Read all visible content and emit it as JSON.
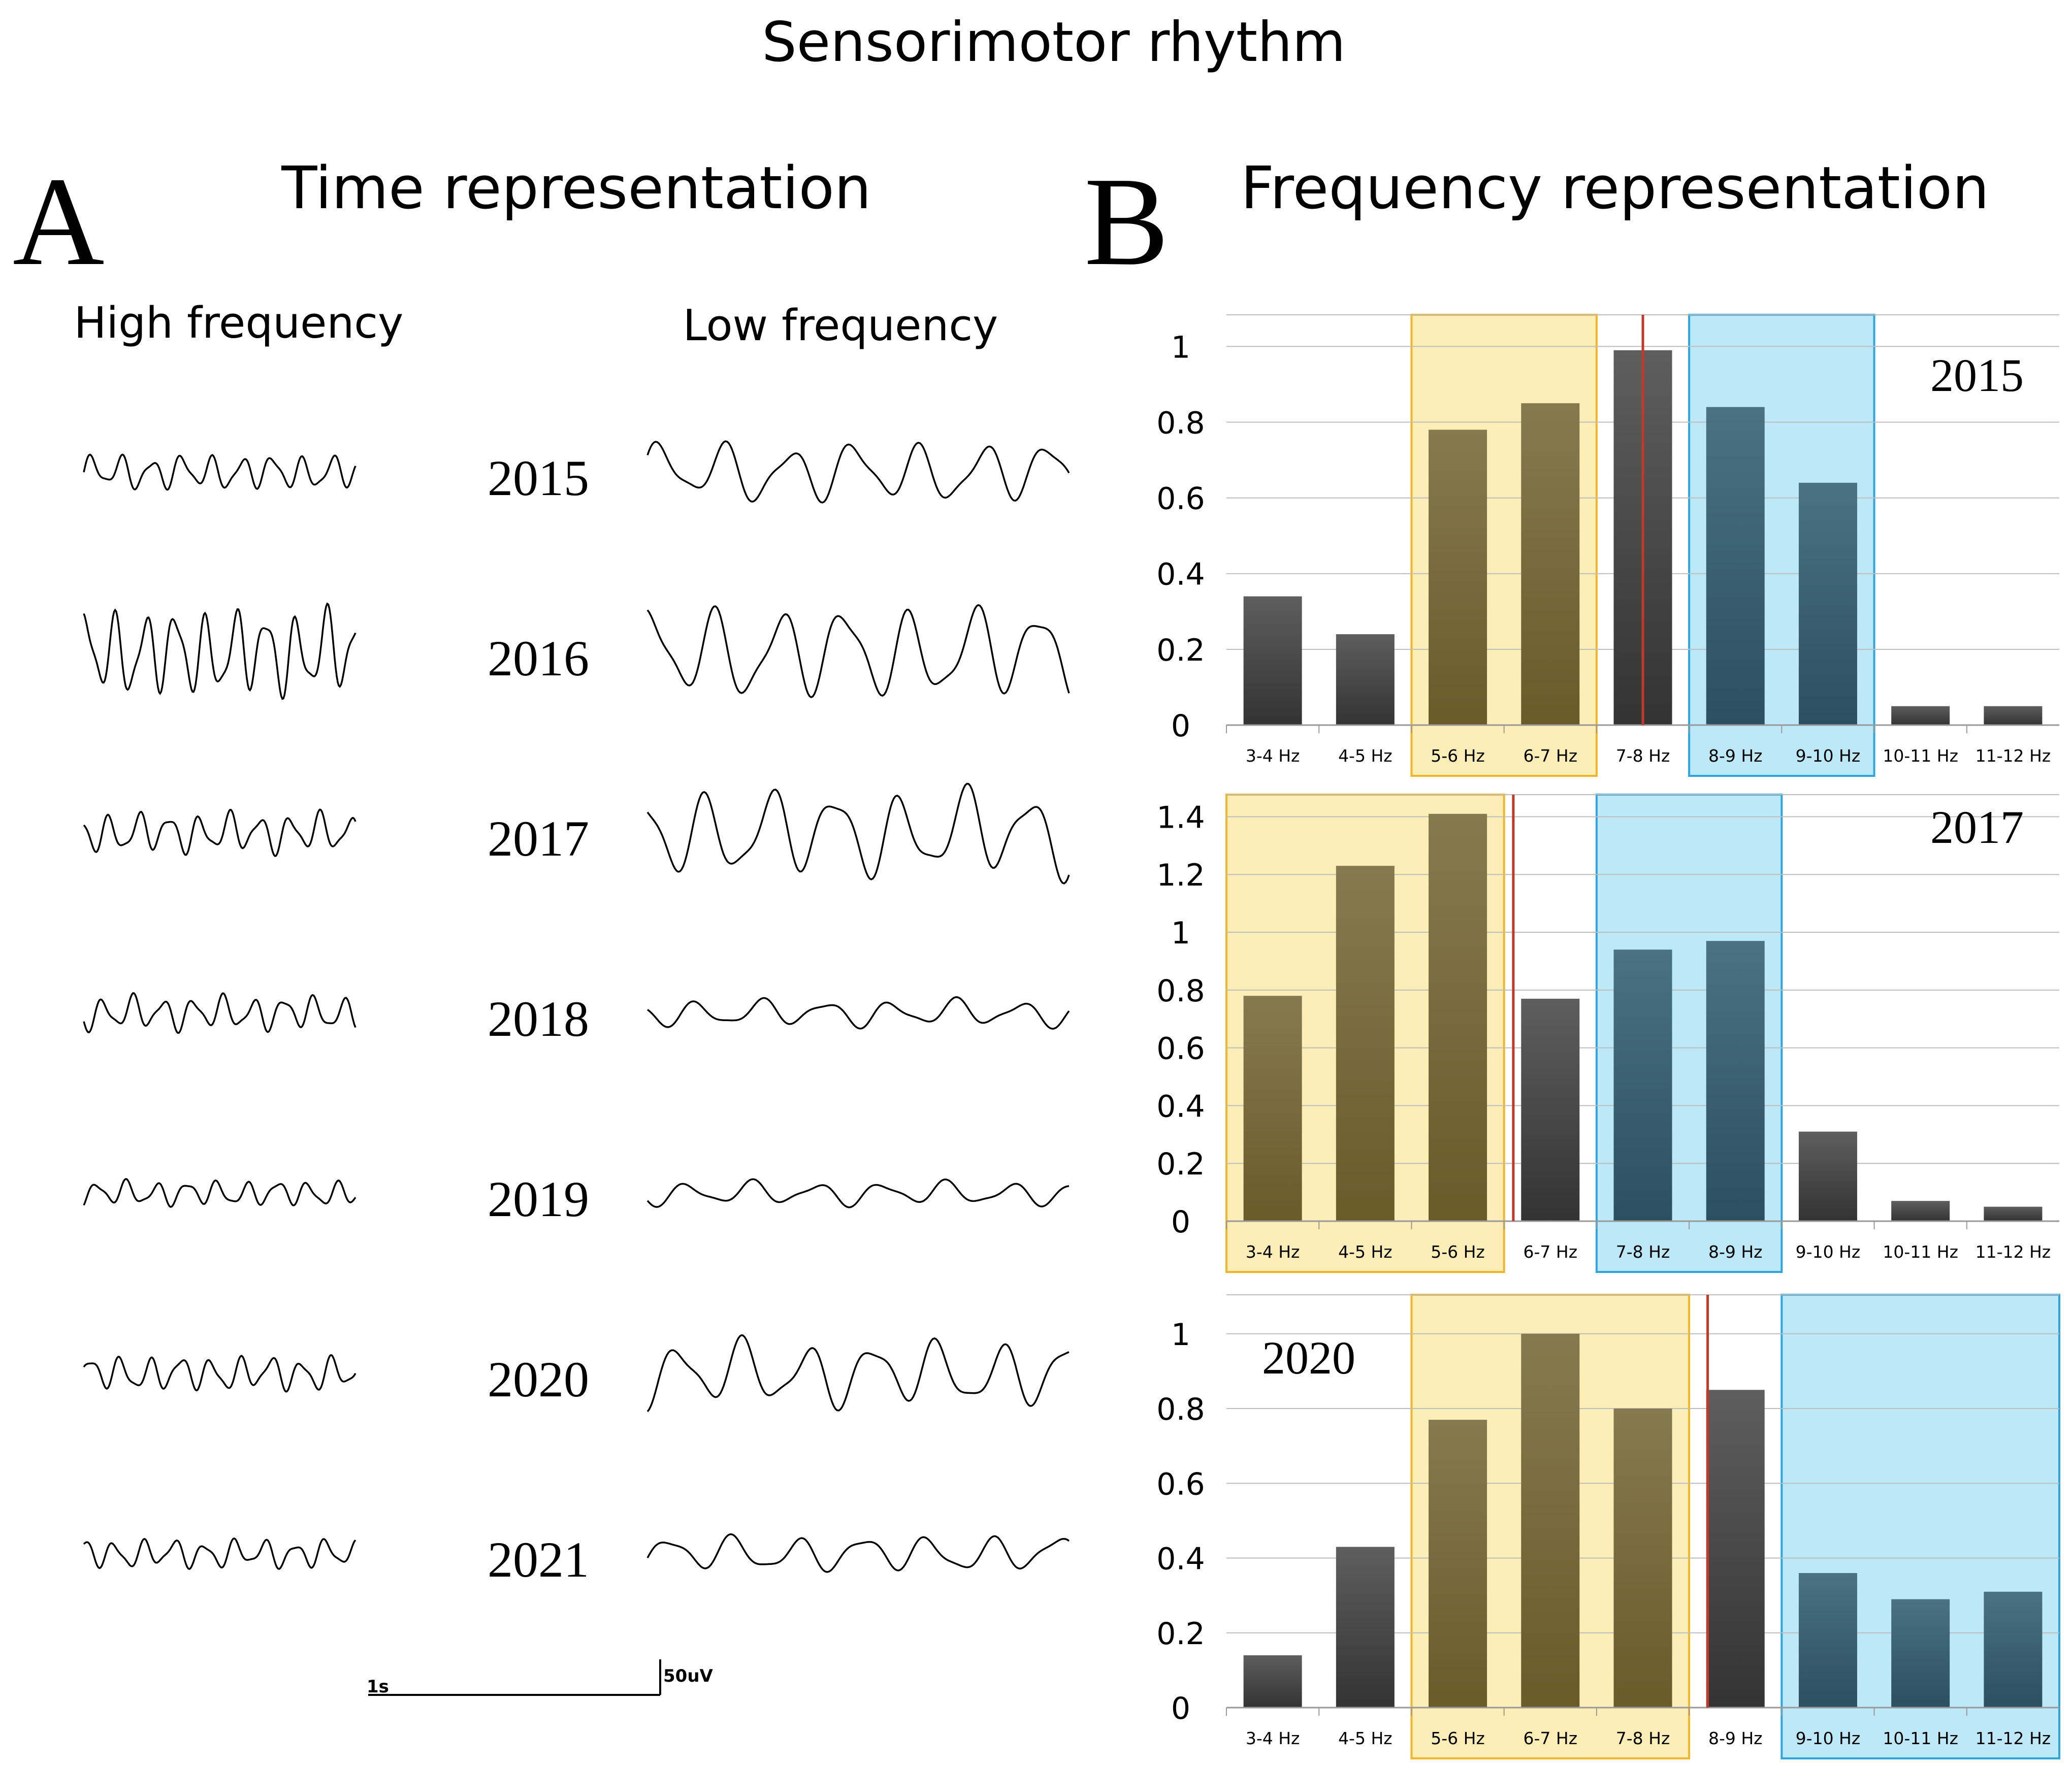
{
  "figure": {
    "title": "Sensorimotor rhythm",
    "panel_a": {
      "letter": "A",
      "title": "Time representation",
      "col_high": "High frequency",
      "col_low": "Low frequency"
    },
    "panel_b": {
      "letter": "B",
      "title": "Frequency representation"
    },
    "scale_bar": {
      "time_label": "1s",
      "amp_label": "50uV"
    }
  },
  "traces": [
    {
      "year": "2015",
      "high_amplitude": 0.3,
      "low_amplitude": 1.0
    },
    {
      "year": "2016",
      "high_amplitude": 0.75,
      "low_amplitude": 1.55
    },
    {
      "year": "2017",
      "high_amplitude": 0.35,
      "low_amplitude": 1.45
    },
    {
      "year": "2018",
      "high_amplitude": 0.3,
      "low_amplitude": 0.45
    },
    {
      "year": "2019",
      "high_amplitude": 0.22,
      "low_amplitude": 0.4
    },
    {
      "year": "2020",
      "high_amplitude": 0.3,
      "low_amplitude": 1.1
    },
    {
      "year": "2021",
      "high_amplitude": 0.25,
      "low_amplitude": 0.6
    }
  ],
  "colors": {
    "bar_dark": "#555555",
    "bar_olive": "#7a6a3c",
    "bar_teal": "#3f6678",
    "band_yellow": "#fdedb7",
    "band_yellow_border": "#f3b62a",
    "band_blue": "#bde8f8",
    "band_blue_border": "#2ea6dd",
    "marker_red": "#c0392b",
    "grid": "#bdbdbd"
  },
  "chart_data": [
    {
      "type": "bar",
      "year_label": "2015",
      "categories": [
        "3-4 Hz",
        "4-5 Hz",
        "5-6 Hz",
        "6-7 Hz",
        "7-8 Hz",
        "8-9 Hz",
        "9-10 Hz",
        "10-11 Hz",
        "11-12 Hz"
      ],
      "values": [
        0.34,
        0.24,
        0.78,
        0.85,
        0.99,
        0.84,
        0.64,
        0.05,
        0.05
      ],
      "band_color": [
        "dark",
        "dark",
        "olive",
        "olive",
        "dark",
        "teal",
        "teal",
        "dark",
        "dark"
      ],
      "yticks": [
        "0",
        "0.2",
        "0.4",
        "0.6",
        "0.8",
        "1"
      ],
      "ylim": [
        0,
        1.05
      ],
      "yellow_band": [
        2,
        3
      ],
      "blue_band": [
        5,
        6
      ],
      "red_marker_at": 4.5,
      "year_pos": "top-right"
    },
    {
      "type": "bar",
      "year_label": "2017",
      "categories": [
        "3-4 Hz",
        "4-5 Hz",
        "5-6 Hz",
        "6-7 Hz",
        "7-8 Hz",
        "8-9 Hz",
        "9-10 Hz",
        "10-11 Hz",
        "11-12 Hz"
      ],
      "values": [
        0.78,
        1.23,
        1.41,
        0.77,
        0.94,
        0.97,
        0.31,
        0.07,
        0.05
      ],
      "band_color": [
        "olive",
        "olive",
        "olive",
        "dark",
        "teal",
        "teal",
        "dark",
        "dark",
        "dark"
      ],
      "yticks": [
        "0",
        "0.2",
        "0.4",
        "0.6",
        "0.8",
        "1",
        "1.2",
        "1.4"
      ],
      "ylim": [
        0,
        1.45
      ],
      "yellow_band": [
        0,
        2
      ],
      "blue_band": [
        4,
        5
      ],
      "red_marker_at": 3.1,
      "year_pos": "top-right"
    },
    {
      "type": "bar",
      "year_label": "2020",
      "categories": [
        "3-4 Hz",
        "4-5 Hz",
        "5-6 Hz",
        "6-7 Hz",
        "7-8 Hz",
        "8-9 Hz",
        "9-10 Hz",
        "10-11 Hz",
        "11-12 Hz"
      ],
      "values": [
        0.14,
        0.43,
        0.77,
        1.0,
        0.8,
        0.85,
        0.36,
        0.29,
        0.31
      ],
      "band_color": [
        "dark",
        "dark",
        "olive",
        "olive",
        "olive",
        "dark",
        "teal",
        "teal",
        "teal"
      ],
      "yticks": [
        "0",
        "0.2",
        "0.4",
        "0.6",
        "0.8",
        "1"
      ],
      "ylim": [
        0,
        1.05
      ],
      "yellow_band": [
        2,
        4
      ],
      "blue_band": [
        6,
        8
      ],
      "red_marker_at": 5.2,
      "year_pos": "top-left"
    }
  ]
}
